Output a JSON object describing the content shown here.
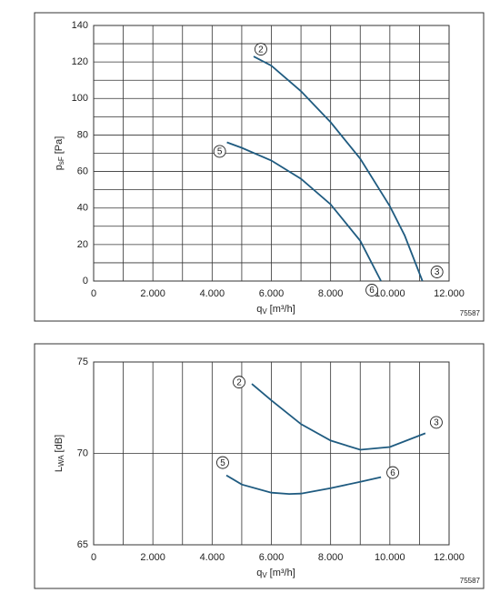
{
  "chart_data": [
    {
      "type": "line",
      "xlabel": [
        "q",
        "V",
        "[m³/h]"
      ],
      "ylabel": [
        "p",
        "sF",
        "[Pa]"
      ],
      "code": "75587",
      "xlim": [
        0,
        12000
      ],
      "ylim": [
        0,
        140
      ],
      "xticks": [
        0,
        {
          "value": 2000,
          "label": "2.000"
        },
        {
          "value": 4000,
          "label": "4.000"
        },
        {
          "value": 6000,
          "label": "6.000"
        },
        {
          "value": 8000,
          "label": "8.000"
        },
        {
          "value": 10000,
          "label": "10.000"
        },
        {
          "value": 12000,
          "label": "12.000"
        }
      ],
      "yticks": [
        0,
        20,
        40,
        60,
        80,
        100,
        120,
        140
      ],
      "grid": true,
      "minor_grid_y": true,
      "series": [
        {
          "start_label": "2",
          "end_label": "3",
          "color": "#1f5b80",
          "x": [
            5400,
            6000,
            7000,
            8000,
            9000,
            10000,
            10500,
            11100
          ],
          "values": [
            123,
            118,
            104,
            87,
            67,
            41,
            25,
            0
          ]
        },
        {
          "start_label": "5",
          "end_label": "6",
          "color": "#1f5b80",
          "x": [
            4500,
            5000,
            6000,
            7000,
            8000,
            9000,
            9700
          ],
          "values": [
            76,
            73,
            66,
            56,
            42,
            22,
            0
          ]
        }
      ]
    },
    {
      "type": "line",
      "xlabel": [
        "q",
        "V",
        "[m³/h]"
      ],
      "ylabel": [
        "L",
        "WA",
        "[dB]"
      ],
      "code": "75587",
      "xlim": [
        0,
        12000
      ],
      "ylim": [
        65,
        75
      ],
      "xticks": [
        0,
        {
          "value": 2000,
          "label": "2.000"
        },
        {
          "value": 4000,
          "label": "4.000"
        },
        {
          "value": 6000,
          "label": "6.000"
        },
        {
          "value": 8000,
          "label": "8.000"
        },
        {
          "value": 10000,
          "label": "10.000"
        },
        {
          "value": 12000,
          "label": "12.000"
        }
      ],
      "yticks": [
        65,
        70,
        75
      ],
      "grid": true,
      "minor_grid_y": false,
      "series": [
        {
          "start_label": "2",
          "end_label": "3",
          "color": "#1f5b80",
          "x": [
            5340,
            6000,
            7000,
            8000,
            9000,
            10000,
            11200
          ],
          "values": [
            73.8,
            72.9,
            71.6,
            70.7,
            70.2,
            70.35,
            71.1
          ]
        },
        {
          "start_label": "5",
          "end_label": "6",
          "color": "#1f5b80",
          "x": [
            4480,
            5000,
            6000,
            6600,
            7000,
            8000,
            9000,
            9700
          ],
          "values": [
            68.8,
            68.3,
            67.85,
            67.78,
            67.8,
            68.1,
            68.45,
            68.7
          ]
        }
      ]
    }
  ]
}
